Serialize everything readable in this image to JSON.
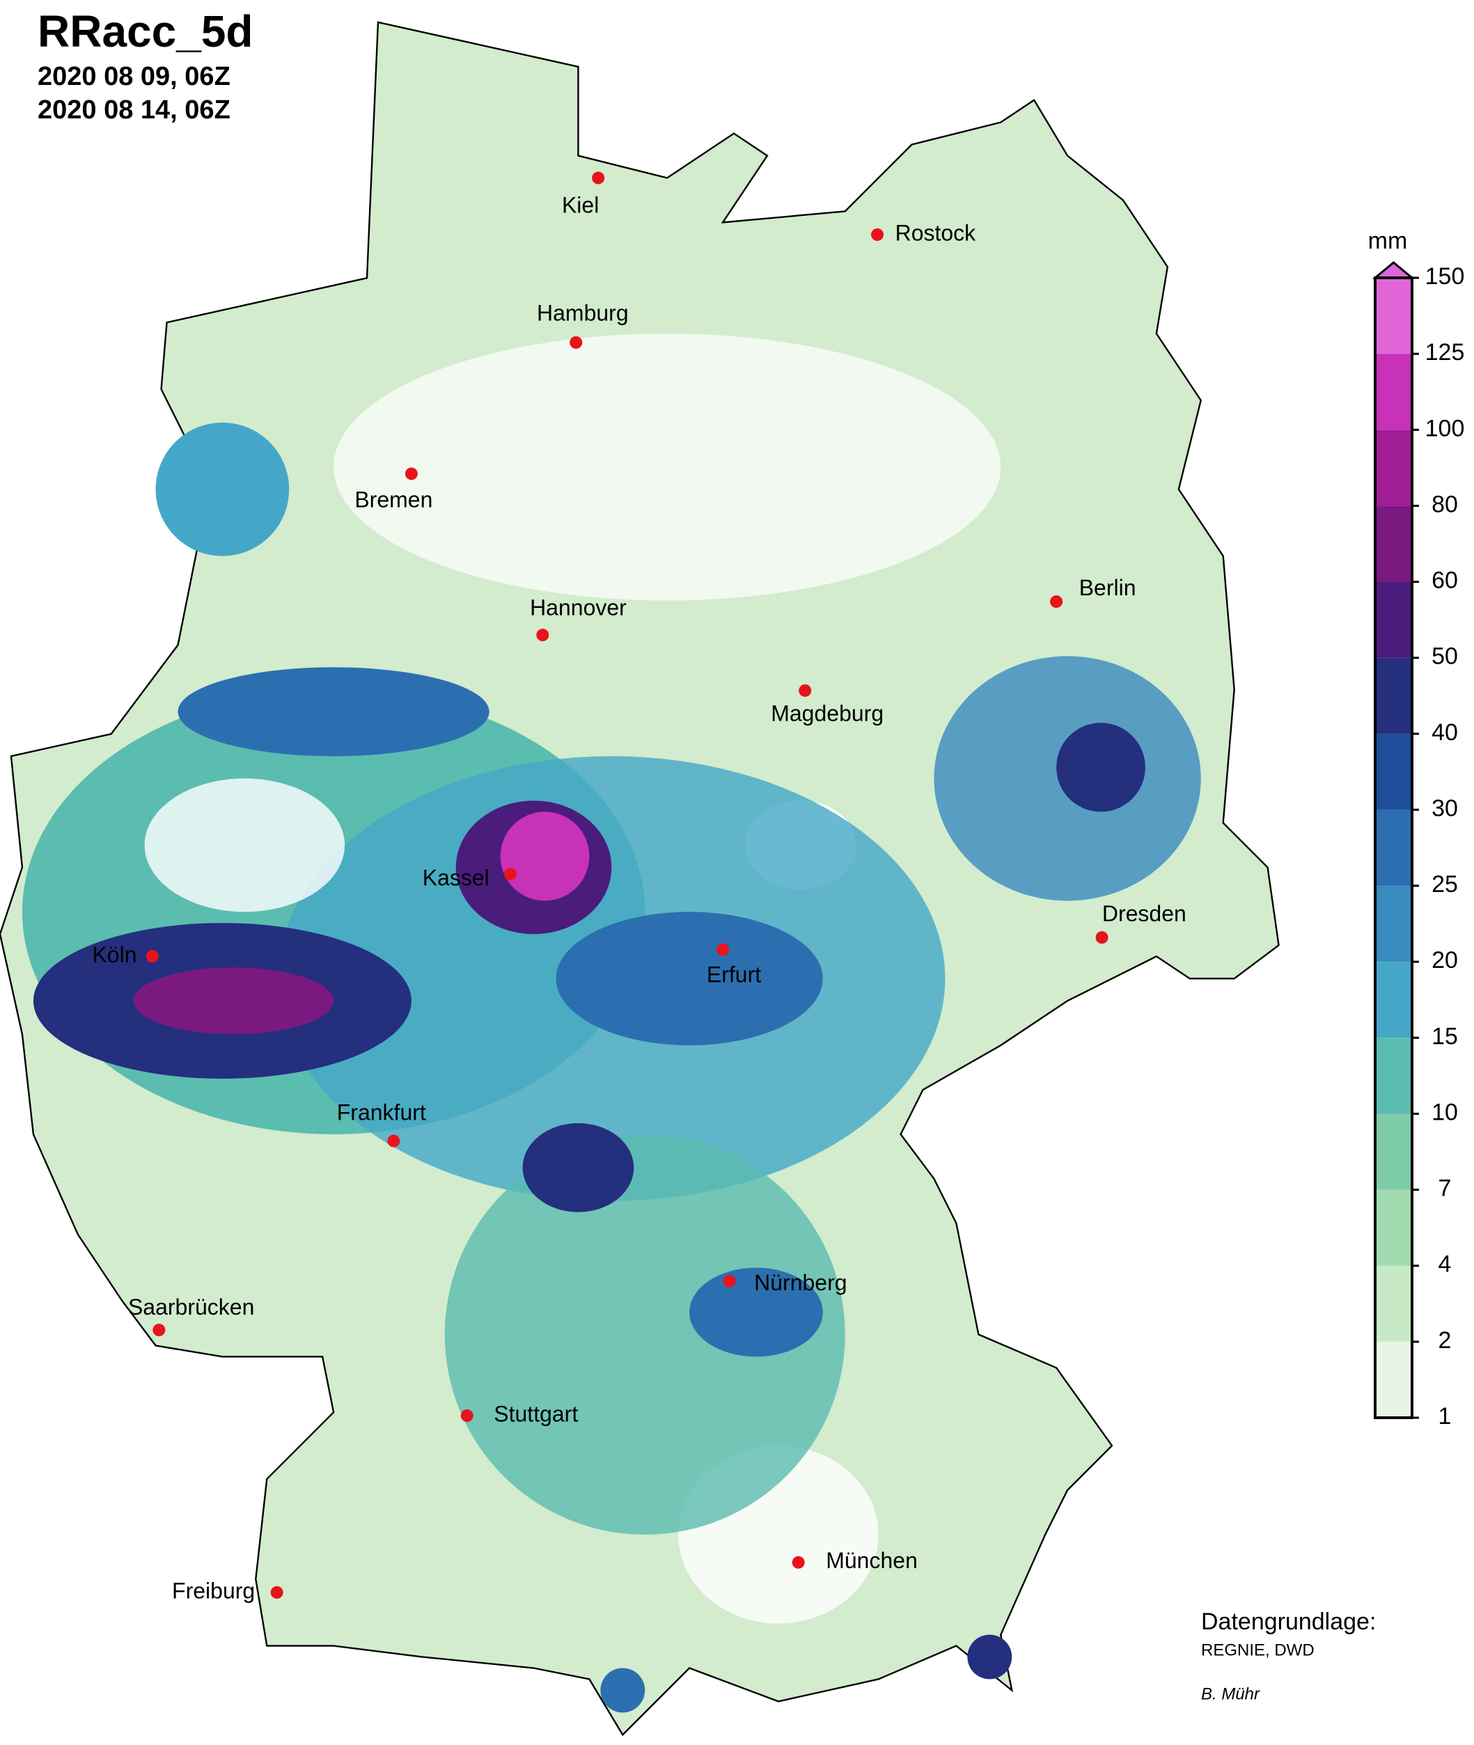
{
  "header": {
    "title": "RRacc_5d",
    "start": "2020 08 09, 06Z",
    "end": "2020 08 14, 06Z"
  },
  "cities": [
    "Kiel",
    "Rostock",
    "Hamburg",
    "Bremen",
    "Hannover",
    "Magdeburg",
    "Berlin",
    "Kassel",
    "Köln",
    "Erfurt",
    "Dresden",
    "Frankfurt",
    "Saarbrücken",
    "Nürnberg",
    "Stuttgart",
    "Freiburg",
    "München"
  ],
  "legend": {
    "unit": "mm",
    "levels": [
      1,
      2,
      4,
      7,
      10,
      15,
      20,
      25,
      30,
      40,
      50,
      60,
      80,
      100,
      125,
      150
    ],
    "colors": [
      "#e8f5e4",
      "#c8e9c5",
      "#a2dab0",
      "#7ecba7",
      "#5bbcb0",
      "#45a7c8",
      "#3a8bc0",
      "#2c6fb0",
      "#1f4f9a",
      "#242f7e",
      "#4a1c7c",
      "#7a1a80",
      "#a01d95",
      "#c832b8",
      "#e066d8"
    ]
  },
  "credits": {
    "source_label": "Datengrundlage:",
    "source": "REGNIE, DWD",
    "author": "B. Mühr"
  }
}
